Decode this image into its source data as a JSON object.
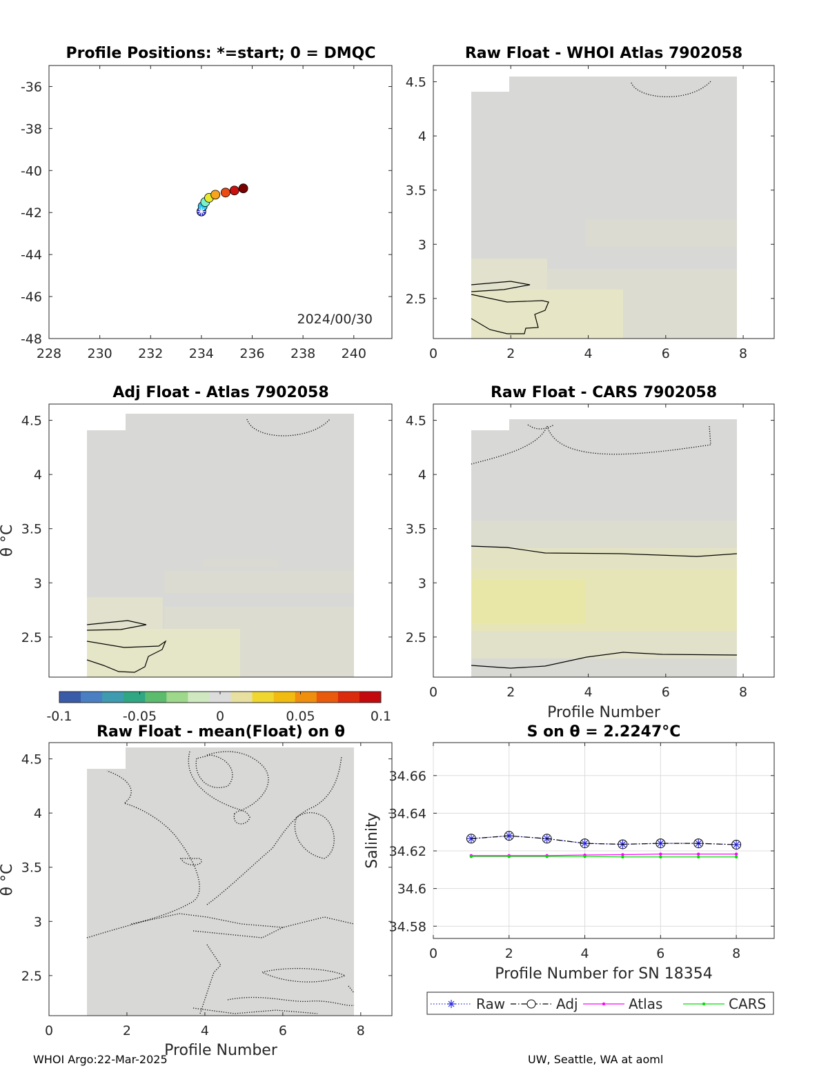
{
  "footer": {
    "left": "WHOI Argo:22-Mar-2025",
    "right": "UW, Seattle, WA at aoml"
  },
  "colorbar": {
    "ticks": [
      "-0.1",
      "-0.05",
      "0",
      "0.05",
      "0.1"
    ],
    "colors": [
      "#3a5ba8",
      "#4a80c3",
      "#3e9bb0",
      "#2fa783",
      "#5cbc6e",
      "#9ed88a",
      "#cfe8c0",
      "#dcdcdc",
      "#e8e0a0",
      "#efd730",
      "#f1bb10",
      "#ef8f0d",
      "#e95a0c",
      "#db2a0c",
      "#c4090c"
    ]
  },
  "chart_data": [
    {
      "type": "scatter",
      "title": "Profile Positions: *=start; 0 = DMQC",
      "annotation": "2024/00/30",
      "xlim": [
        228,
        241.5
      ],
      "ylim": [
        -48,
        -35
      ],
      "xticks": [
        "228",
        "230",
        "232",
        "234",
        "236",
        "238",
        "240"
      ],
      "yticks": [
        "-36",
        "-38",
        "-40",
        "-42",
        "-44",
        "-46",
        "-48"
      ],
      "x": [
        234.0,
        234.05,
        234.15,
        234.3,
        234.55,
        234.95,
        235.3,
        235.65
      ],
      "y": [
        -41.95,
        -41.7,
        -41.5,
        -41.3,
        -41.15,
        -41.05,
        -40.95,
        -40.85
      ],
      "colors": [
        "#2a2ad0",
        "#29c6f4",
        "#7cf0c8",
        "#e8ea2e",
        "#f8a41c",
        "#ee4a14",
        "#cc0f0f",
        "#7a0000"
      ]
    },
    {
      "type": "heatmap",
      "title": "Raw Float - WHOI Atlas  7902058",
      "xlim": [
        0,
        8.8
      ],
      "ylim": [
        2.13,
        4.65
      ],
      "xticks": [
        "0",
        "2",
        "4",
        "6",
        "8"
      ],
      "yticks": [
        "4.5",
        "4",
        "3.5",
        "3",
        "2.5"
      ]
    },
    {
      "type": "heatmap",
      "title": "Adj Float - Atlas  7902058",
      "ylabel": "θ °C",
      "xlim": [
        0,
        8.8
      ],
      "ylim": [
        2.13,
        4.65
      ],
      "yticks": [
        "4.5",
        "4",
        "3.5",
        "3",
        "2.5"
      ]
    },
    {
      "type": "heatmap",
      "title": "Raw Float - CARS  7902058",
      "xlabel": "Profile Number",
      "xlim": [
        0,
        8.8
      ],
      "ylim": [
        2.13,
        4.65
      ],
      "xticks": [
        "0",
        "2",
        "4",
        "6",
        "8"
      ],
      "yticks": [
        "4.5",
        "4",
        "3.5",
        "3",
        "2.5"
      ]
    },
    {
      "type": "heatmap",
      "title": "Raw Float - mean(Float) on θ",
      "ylabel": "θ °C",
      "xlabel": "Profile Number",
      "xlim": [
        0,
        8.8
      ],
      "ylim": [
        2.13,
        4.65
      ],
      "xticks": [
        "0",
        "2",
        "4",
        "6",
        "8"
      ],
      "yticks": [
        "4.5",
        "4",
        "3.5",
        "3",
        "2.5"
      ]
    },
    {
      "type": "line",
      "title": "S on θ = 2.2247°C",
      "xlabel": "Profile Number for SN 18354",
      "ylabel": "Salinity",
      "xlim": [
        0,
        9
      ],
      "ylim": [
        34.5735,
        34.6775
      ],
      "xticks": [
        "0",
        "2",
        "4",
        "6",
        "8"
      ],
      "yticks": [
        "34.66",
        "34.64",
        "34.62",
        "34.6",
        "34.58"
      ],
      "x": [
        1,
        2,
        3,
        4,
        5,
        6,
        7,
        8
      ],
      "series": [
        {
          "name": "Raw",
          "color": "#2a2ae0",
          "values": [
            34.6265,
            34.628,
            34.6265,
            34.624,
            34.6235,
            34.624,
            34.624,
            34.6233
          ]
        },
        {
          "name": "Adj",
          "color": "#000000",
          "values": [
            34.6265,
            34.628,
            34.6265,
            34.624,
            34.6235,
            34.624,
            34.624,
            34.6233
          ]
        },
        {
          "name": "Atlas",
          "color": "#ff00ff",
          "values": [
            34.6175,
            34.6175,
            34.6175,
            34.6178,
            34.618,
            34.6183,
            34.6183,
            34.6183
          ]
        },
        {
          "name": "CARS",
          "color": "#00dd00",
          "values": [
            34.617,
            34.617,
            34.617,
            34.617,
            34.6168,
            34.6168,
            34.6168,
            34.6168
          ]
        }
      ]
    }
  ]
}
